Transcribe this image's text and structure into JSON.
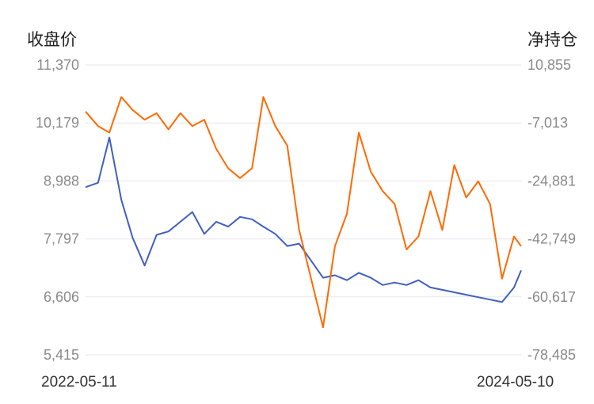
{
  "chart_data": {
    "type": "line",
    "y_left_title": "收盘价",
    "y_right_title": "净持仓",
    "x_start_label": "2022-05-11",
    "x_end_label": "2024-05-10",
    "y_left_ticks": [
      "11,370",
      "10,179",
      "8,988",
      "7,797",
      "6,606",
      "5,415"
    ],
    "y_right_ticks": [
      "10,855",
      "-7,013",
      "-24,881",
      "-42,749",
      "-60,617",
      "-78,485"
    ],
    "ylim_left": [
      5415,
      11370
    ],
    "ylim_right": [
      -78485,
      10855
    ],
    "grid": true,
    "colors": {
      "close": "#4060c0",
      "net_position": "#ff6a00"
    },
    "series": [
      {
        "axis": "left",
        "x": [
          "2022-05-11",
          "2022-06-01",
          "2022-06-20",
          "2022-07-10",
          "2022-07-29",
          "2022-08-18",
          "2022-09-07",
          "2022-09-27",
          "2022-10-17",
          "2022-11-06",
          "2022-11-26",
          "2022-12-16",
          "2023-01-05",
          "2023-01-25",
          "2023-02-14",
          "2023-03-05",
          "2023-03-25",
          "2023-04-14",
          "2023-05-04",
          "2023-05-24",
          "2023-06-13",
          "2023-07-03",
          "2023-07-23",
          "2023-08-12",
          "2023-09-01",
          "2023-09-21",
          "2023-10-11",
          "2023-10-31",
          "2023-11-20",
          "2023-12-10",
          "2023-12-30",
          "2024-01-19",
          "2024-02-08",
          "2024-02-28",
          "2024-03-19",
          "2024-04-08",
          "2024-04-28",
          "2024-05-10"
        ],
        "values": [
          8860,
          8950,
          9880,
          8600,
          7820,
          7250,
          7880,
          7950,
          8150,
          8350,
          7900,
          8150,
          8050,
          8250,
          8200,
          8050,
          7900,
          7650,
          7700,
          7350,
          7000,
          7050,
          6950,
          7100,
          7000,
          6850,
          6900,
          6850,
          6950,
          6800,
          6750,
          6700,
          6650,
          6600,
          6550,
          6500,
          6800,
          7150
        ]
      },
      {
        "axis": "right",
        "x": [
          "2022-05-11",
          "2022-06-01",
          "2022-06-20",
          "2022-07-10",
          "2022-07-29",
          "2022-08-18",
          "2022-09-07",
          "2022-09-27",
          "2022-10-17",
          "2022-11-06",
          "2022-11-26",
          "2022-12-16",
          "2023-01-05",
          "2023-01-25",
          "2023-02-14",
          "2023-03-05",
          "2023-03-25",
          "2023-04-14",
          "2023-05-04",
          "2023-05-24",
          "2023-06-13",
          "2023-07-03",
          "2023-07-23",
          "2023-08-12",
          "2023-09-01",
          "2023-09-21",
          "2023-10-11",
          "2023-10-31",
          "2023-11-20",
          "2023-12-10",
          "2023-12-30",
          "2024-01-19",
          "2024-02-08",
          "2024-02-28",
          "2024-03-19",
          "2024-04-08",
          "2024-04-28",
          "2024-05-10"
        ],
        "values": [
          -3500,
          -8000,
          -10000,
          1000,
          -3000,
          -6000,
          -4000,
          -9000,
          -4000,
          -8000,
          -6000,
          -15000,
          -21000,
          -24000,
          -21000,
          1000,
          -8000,
          -14000,
          -40000,
          -55000,
          -70000,
          -45000,
          -35000,
          -10000,
          -22000,
          -28000,
          -32000,
          -46000,
          -42000,
          -28000,
          -40000,
          -20000,
          -30000,
          -25000,
          -32000,
          -55000,
          -42000,
          -45000
        ]
      }
    ]
  }
}
